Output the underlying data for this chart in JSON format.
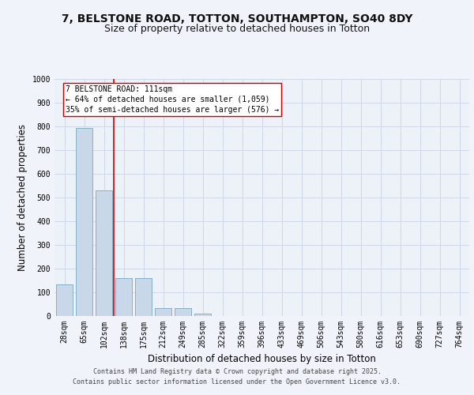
{
  "title_line1": "7, BELSTONE ROAD, TOTTON, SOUTHAMPTON, SO40 8DY",
  "title_line2": "Size of property relative to detached houses in Totton",
  "xlabel": "Distribution of detached houses by size in Totton",
  "ylabel": "Number of detached properties",
  "categories": [
    "28sqm",
    "65sqm",
    "102sqm",
    "138sqm",
    "175sqm",
    "212sqm",
    "249sqm",
    "285sqm",
    "322sqm",
    "359sqm",
    "396sqm",
    "433sqm",
    "469sqm",
    "506sqm",
    "543sqm",
    "580sqm",
    "616sqm",
    "653sqm",
    "690sqm",
    "727sqm",
    "764sqm"
  ],
  "values": [
    135,
    795,
    530,
    160,
    160,
    35,
    35,
    10,
    0,
    0,
    0,
    0,
    0,
    0,
    0,
    0,
    0,
    0,
    0,
    0,
    0
  ],
  "bar_color": "#c8d8e8",
  "bar_edge_color": "#6699bb",
  "grid_color": "#d0d8e8",
  "background_color": "#edf2f8",
  "fig_background_color": "#f0f4fa",
  "vline_x": 2.5,
  "vline_color": "#cc0000",
  "annotation_text": "7 BELSTONE ROAD: 111sqm\n← 64% of detached houses are smaller (1,059)\n35% of semi-detached houses are larger (576) →",
  "annotation_box_color": "#ffffff",
  "annotation_box_edge": "#cc0000",
  "ylim": [
    0,
    1000
  ],
  "yticks": [
    0,
    100,
    200,
    300,
    400,
    500,
    600,
    700,
    800,
    900,
    1000
  ],
  "footer_line1": "Contains HM Land Registry data © Crown copyright and database right 2025.",
  "footer_line2": "Contains public sector information licensed under the Open Government Licence v3.0.",
  "title_fontsize": 10,
  "subtitle_fontsize": 9,
  "tick_fontsize": 7,
  "label_fontsize": 8.5,
  "footer_fontsize": 6,
  "annotation_fontsize": 7
}
